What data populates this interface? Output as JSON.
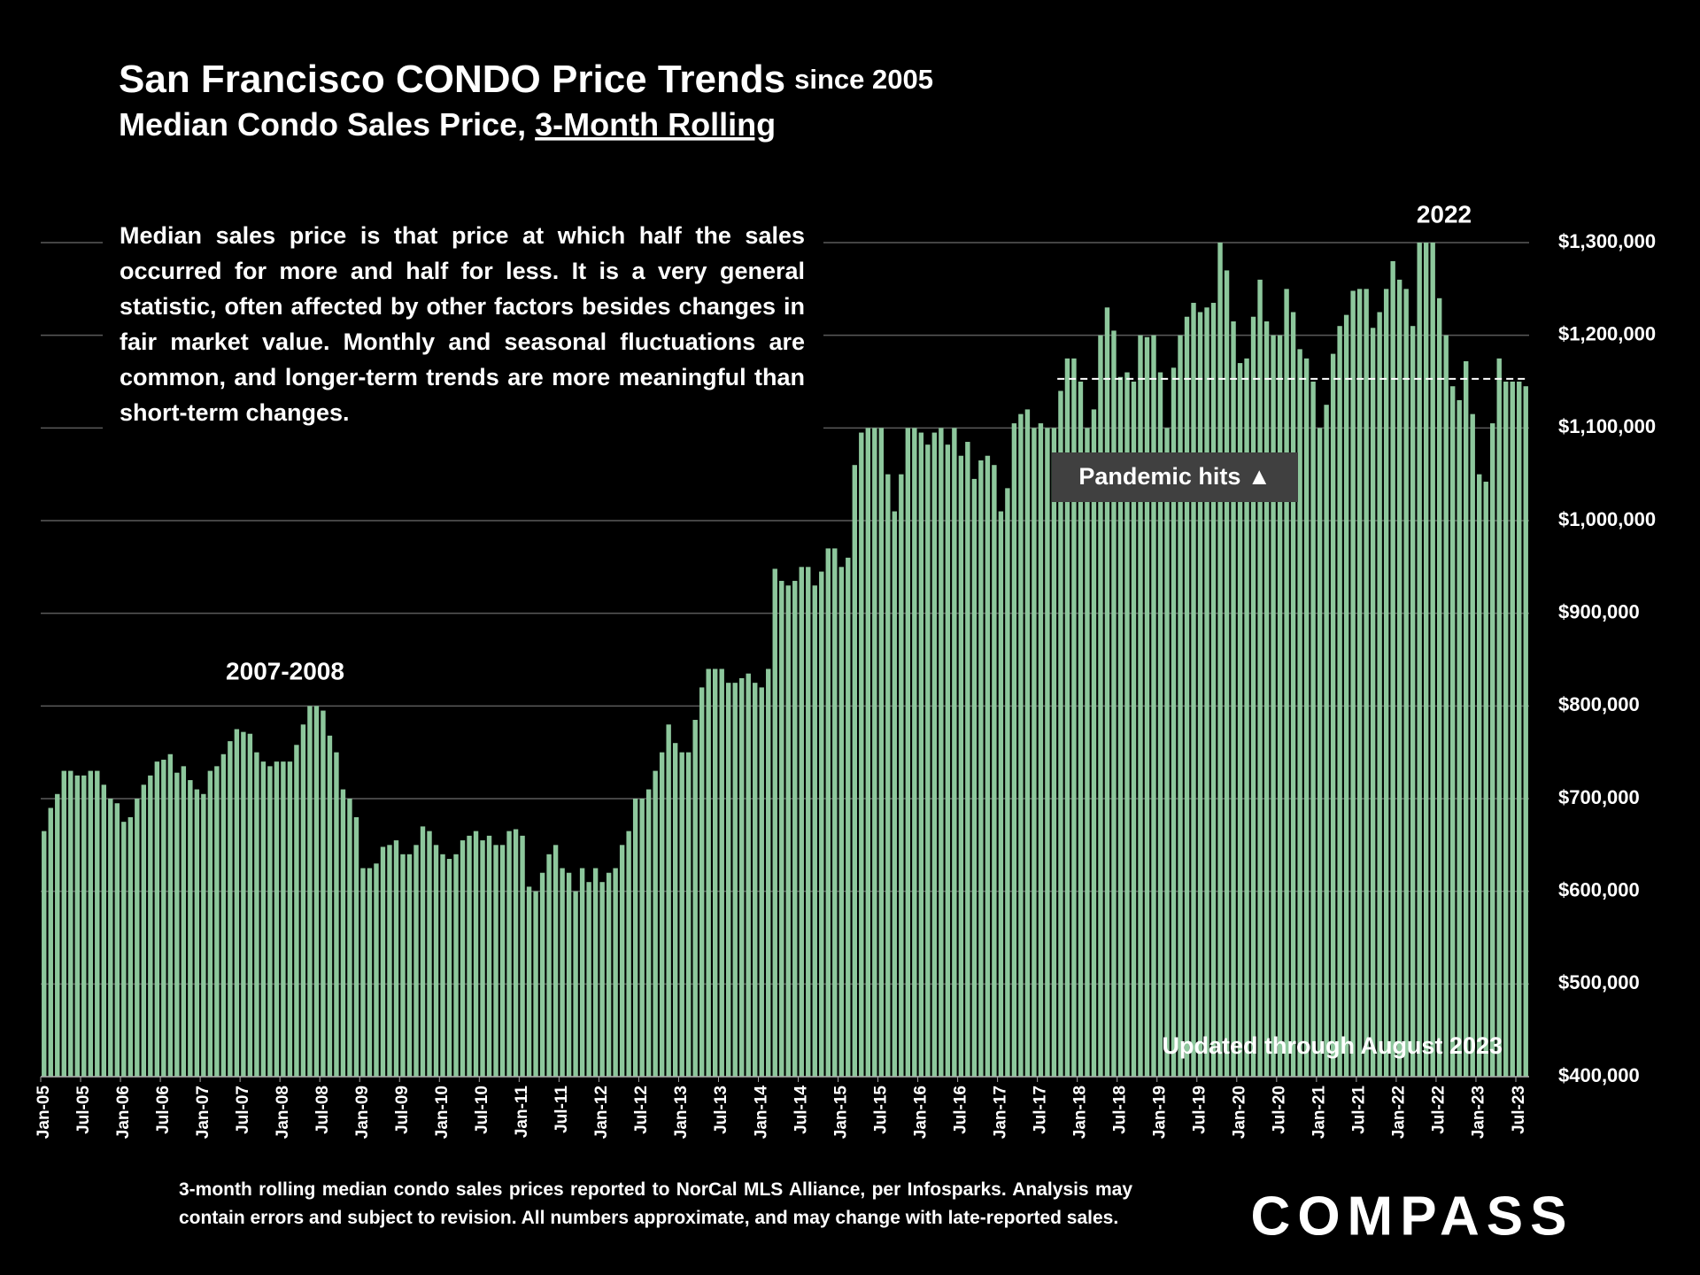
{
  "chart_data": {
    "type": "bar",
    "title": "San Francisco CONDO Price Trends",
    "title_suffix": "since 2005",
    "subtitle": "Median Condo Sales Price,",
    "subtitle_underlined": "3-Month Rolling",
    "note": "Median sales price is that price at which half the sales occurred for more and half for less. It is a very general statistic, often affected by other factors besides changes in fair market value. Monthly and seasonal fluctuations are common, and longer-term trends are more meaningful than short-term changes.",
    "footnote": "3-month rolling median condo sales prices reported to NorCal MLS Alliance, per Infosparks. Analysis may contain errors and subject to revision. All numbers approximate, and may change with late-reported sales.",
    "annotations": [
      "2007-2008",
      "2022",
      "Pandemic hits ▲",
      "Updated through August 2023"
    ],
    "categories": [
      "Jan-05",
      null,
      null,
      null,
      null,
      null,
      "Jul-05",
      null,
      null,
      null,
      null,
      null,
      "Jan-06",
      null,
      null,
      null,
      null,
      null,
      "Jul-06",
      null,
      null,
      null,
      null,
      null,
      "Jan-07",
      null,
      null,
      null,
      null,
      null,
      "Jul-07",
      null,
      null,
      null,
      null,
      null,
      "Jan-08",
      null,
      null,
      null,
      null,
      null,
      "Jul-08",
      null,
      null,
      null,
      null,
      null,
      "Jan-09",
      null,
      null,
      null,
      null,
      null,
      "Jul-09",
      null,
      null,
      null,
      null,
      null,
      "Jan-10",
      null,
      null,
      null,
      null,
      null,
      "Jul-10",
      null,
      null,
      null,
      null,
      null,
      "Jan-11",
      null,
      null,
      null,
      null,
      null,
      "Jul-11",
      null,
      null,
      null,
      null,
      null,
      "Jan-12",
      null,
      null,
      null,
      null,
      null,
      "Jul-12",
      null,
      null,
      null,
      null,
      null,
      "Jan-13",
      null,
      null,
      null,
      null,
      null,
      "Jul-13",
      null,
      null,
      null,
      null,
      null,
      "Jan-14",
      null,
      null,
      null,
      null,
      null,
      "Jul-14",
      null,
      null,
      null,
      null,
      null,
      "Jan-15",
      null,
      null,
      null,
      null,
      null,
      "Jul-15",
      null,
      null,
      null,
      null,
      null,
      "Jan-16",
      null,
      null,
      null,
      null,
      null,
      "Jul-16",
      null,
      null,
      null,
      null,
      null,
      "Jan-17",
      null,
      null,
      null,
      null,
      null,
      "Jul-17",
      null,
      null,
      null,
      null,
      null,
      "Jan-18",
      null,
      null,
      null,
      null,
      null,
      "Jul-18",
      null,
      null,
      null,
      null,
      null,
      "Jan-19",
      null,
      null,
      null,
      null,
      null,
      "Jul-19",
      null,
      null,
      null,
      null,
      null,
      "Jan-20",
      null,
      null,
      null,
      null,
      null,
      "Jul-20",
      null,
      null,
      null,
      null,
      null,
      "Jan-21",
      null,
      null,
      null,
      null,
      null,
      "Jul-21",
      null,
      null,
      null,
      null,
      null,
      "Jan-22",
      null,
      null,
      null,
      null,
      null,
      "Jul-22",
      null,
      null,
      null,
      null,
      null,
      "Jan-23",
      null,
      null,
      null,
      null,
      null,
      "Jul-23",
      null
    ],
    "values": [
      665000,
      690000,
      705000,
      730000,
      730000,
      725000,
      725000,
      730000,
      730000,
      715000,
      700000,
      695000,
      675000,
      680000,
      700000,
      715000,
      725000,
      740000,
      742000,
      748000,
      728000,
      735000,
      720000,
      710000,
      705000,
      730000,
      735000,
      748000,
      762000,
      775000,
      772000,
      770000,
      750000,
      740000,
      735000,
      740000,
      740000,
      740000,
      758000,
      780000,
      800000,
      800000,
      795000,
      768000,
      750000,
      710000,
      700000,
      680000,
      625000,
      625000,
      630000,
      648000,
      650000,
      655000,
      640000,
      640000,
      650000,
      670000,
      665000,
      650000,
      640000,
      635000,
      640000,
      655000,
      660000,
      665000,
      655000,
      660000,
      650000,
      650000,
      665000,
      667000,
      660000,
      605000,
      600000,
      620000,
      640000,
      650000,
      625000,
      620000,
      600000,
      625000,
      610000,
      625000,
      610000,
      620000,
      625000,
      650000,
      665000,
      700000,
      700000,
      710000,
      730000,
      750000,
      780000,
      760000,
      750000,
      750000,
      785000,
      820000,
      840000,
      840000,
      840000,
      825000,
      825000,
      830000,
      835000,
      825000,
      820000,
      840000,
      948000,
      935000,
      930000,
      935000,
      950000,
      950000,
      930000,
      945000,
      970000,
      970000,
      950000,
      960000,
      1060000,
      1095000,
      1100000,
      1100000,
      1100000,
      1050000,
      1010000,
      1050000,
      1100000,
      1100000,
      1095000,
      1082000,
      1095000,
      1100000,
      1082000,
      1100000,
      1070000,
      1085000,
      1045000,
      1065000,
      1070000,
      1060000,
      1010000,
      1035000,
      1105000,
      1115000,
      1120000,
      1100000,
      1105000,
      1100000,
      1100000,
      1140000,
      1175000,
      1175000,
      1150000,
      1100000,
      1120000,
      1200000,
      1230000,
      1205000,
      1155000,
      1160000,
      1150000,
      1200000,
      1198000,
      1200000,
      1160000,
      1100000,
      1165000,
      1200000,
      1220000,
      1235000,
      1225000,
      1230000,
      1235000,
      1300000,
      1270000,
      1215000,
      1170000,
      1175000,
      1220000,
      1260000,
      1215000,
      1200000,
      1200000,
      1250000,
      1225000,
      1185000,
      1175000,
      1150000,
      1100000,
      1125000,
      1180000,
      1210000,
      1222000,
      1248000,
      1250000,
      1250000,
      1208000,
      1225000,
      1250000,
      1280000,
      1260000,
      1250000,
      1210000,
      1300000,
      1300000,
      1300000,
      1240000,
      1200000,
      1145000,
      1130000,
      1172000,
      1115000,
      1050000,
      1042000,
      1105000,
      1175000,
      1150000,
      1150000,
      1150000,
      1145000
    ],
    "color": "#8dc79c",
    "reference_line": 1153000,
    "ylim": [
      400000,
      1300000
    ],
    "yticks": [
      {
        "value": 400000,
        "label": "$400,000"
      },
      {
        "value": 500000,
        "label": "$500,000"
      },
      {
        "value": 600000,
        "label": "$600,000"
      },
      {
        "value": 700000,
        "label": "$700,000"
      },
      {
        "value": 800000,
        "label": "$800,000"
      },
      {
        "value": 900000,
        "label": "$900,000"
      },
      {
        "value": 1000000,
        "label": "$1,000,000"
      },
      {
        "value": 1100000,
        "label": "$1,100,000"
      },
      {
        "value": 1200000,
        "label": "$1,200,000"
      },
      {
        "value": 1300000,
        "label": "$1,300,000"
      }
    ],
    "grid": true
  },
  "logo": "COMPASS"
}
